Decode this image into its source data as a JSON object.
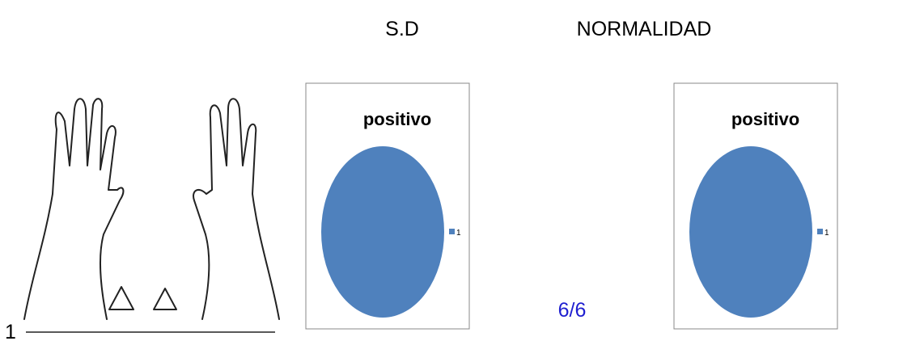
{
  "header": {
    "left": "S.D",
    "right": "NORMALIDAD"
  },
  "figure": {
    "label": "1"
  },
  "chart_data": [
    {
      "type": "pie",
      "title": "positivo",
      "categories": [
        "1"
      ],
      "values": [
        6
      ],
      "colors": [
        "#4f81bd"
      ],
      "legend": "right",
      "caption": "6/6"
    },
    {
      "type": "pie",
      "title": "positivo",
      "categories": [
        "1"
      ],
      "values": [
        6
      ],
      "colors": [
        "#4f81bd"
      ],
      "legend": "right",
      "caption": "6/6"
    }
  ]
}
